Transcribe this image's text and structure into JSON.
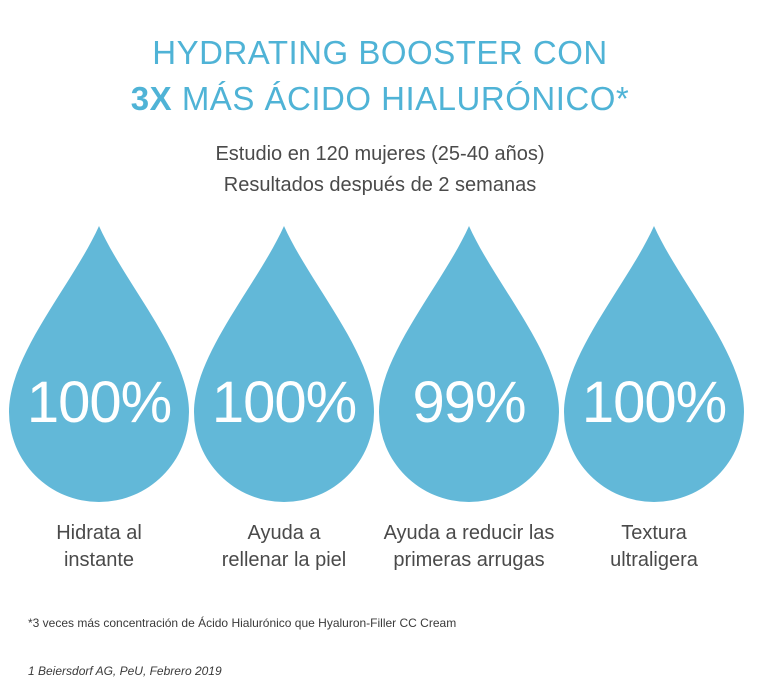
{
  "header": {
    "title_line1": "HYDRATING BOOSTER CON",
    "title_line2_bold": "3X",
    "title_line2_rest": "MÁS ÁCIDO HIALURÓNICO*",
    "subtitle_line1": "Estudio en 120 mujeres (25-40 años)",
    "subtitle_line2": "Resultados después de 2 semanas"
  },
  "drops": [
    {
      "value": "100%",
      "caption_line1": "Hidrata al",
      "caption_line2": "instante"
    },
    {
      "value": "100%",
      "caption_line1": "Ayuda a",
      "caption_line2": "rellenar la piel"
    },
    {
      "value": "99%",
      "caption_line1": "Ayuda a reducir las",
      "caption_line2": "primeras arrugas"
    },
    {
      "value": "100%",
      "caption_line1": "Textura",
      "caption_line2": "ultraligera"
    }
  ],
  "footnote": "*3 veces  más concentración de Ácido Hialurónico que Hyaluron-Filler CC Cream",
  "source": "1 Beiersdorf AG, PeU, Febrero 2019",
  "colors": {
    "accent": "#4fb3d6",
    "drop": "#62b8d8",
    "text": "#4a4a4a"
  }
}
